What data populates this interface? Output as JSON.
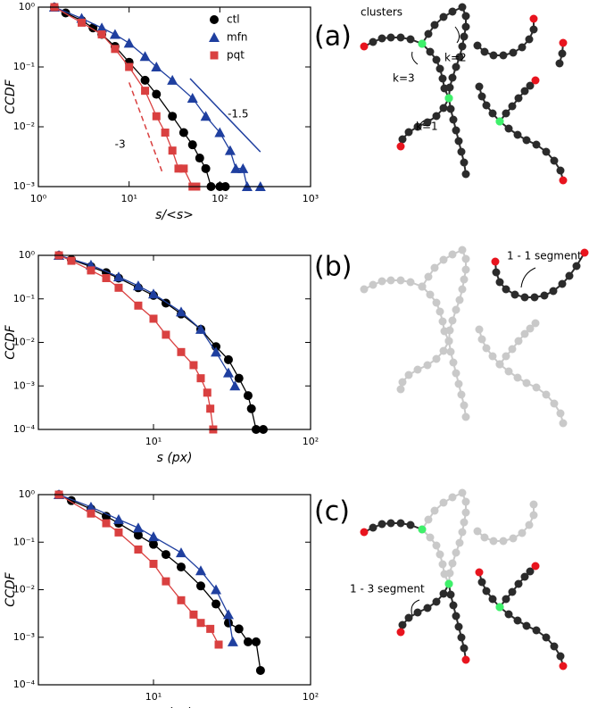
{
  "chart_data": [
    {
      "type": "line",
      "xlabel": "s/<s>",
      "ylabel": "CCDF",
      "xscale": "log",
      "yscale": "log",
      "xlim": [
        1,
        1000
      ],
      "ylim": [
        0.001,
        1
      ],
      "xticks": [
        {
          "value": 1,
          "label": "10⁰"
        },
        {
          "value": 10,
          "label": "10¹"
        },
        {
          "value": 100,
          "label": "10²"
        },
        {
          "value": 1000,
          "label": "10³"
        }
      ],
      "yticks": [
        {
          "value": 0.001,
          "label": "10⁻³"
        },
        {
          "value": 0.01,
          "label": "10⁻²"
        },
        {
          "value": 0.1,
          "label": "10⁻¹"
        },
        {
          "value": 1,
          "label": "10⁰"
        }
      ],
      "legend": "upper right",
      "series": [
        {
          "name": "ctl",
          "color": "#000000",
          "marker": "circle",
          "x": [
            1.5,
            2,
            3,
            4,
            5,
            7,
            10,
            15,
            20,
            30,
            40,
            50,
            60,
            70,
            80,
            100,
            115
          ],
          "values": [
            1,
            0.8,
            0.6,
            0.45,
            0.35,
            0.22,
            0.12,
            0.06,
            0.035,
            0.015,
            0.008,
            0.005,
            0.003,
            0.002,
            0.001,
            0.001,
            0.001
          ]
        },
        {
          "name": "mfn",
          "color": "#1f3f9f",
          "marker": "triangle",
          "x": [
            1.5,
            3,
            5,
            7,
            10,
            15,
            20,
            30,
            50,
            70,
            100,
            130,
            150,
            180,
            200,
            280
          ],
          "values": [
            1,
            0.65,
            0.45,
            0.35,
            0.25,
            0.15,
            0.1,
            0.06,
            0.03,
            0.015,
            0.008,
            0.004,
            0.002,
            0.002,
            0.001,
            0.001
          ]
        },
        {
          "name": "pqt",
          "color": "#d94040",
          "marker": "square",
          "x": [
            1.5,
            3,
            5,
            7,
            10,
            15,
            20,
            25,
            30,
            35,
            40,
            50,
            55
          ],
          "values": [
            1,
            0.55,
            0.35,
            0.2,
            0.1,
            0.04,
            0.015,
            0.008,
            0.004,
            0.002,
            0.002,
            0.001,
            0.001
          ]
        }
      ],
      "reference_lines": [
        {
          "label": "-1.5",
          "color": "#1f3f9f",
          "style": "solid",
          "x": [
            47,
            280
          ],
          "values": [
            0.064,
            0.0038
          ]
        },
        {
          "label": "-3",
          "color": "#d94040",
          "style": "dashed",
          "x": [
            10,
            23
          ],
          "values": [
            0.055,
            0.0018
          ]
        }
      ]
    },
    {
      "type": "line",
      "xlabel": "s (px)",
      "ylabel": "CCDF",
      "xscale": "log",
      "yscale": "log",
      "xlim": [
        1.85,
        100
      ],
      "ylim": [
        0.0001,
        1
      ],
      "xticks": [
        {
          "value": 10,
          "label": "10¹"
        },
        {
          "value": 100,
          "label": "10²"
        }
      ],
      "yticks": [
        {
          "value": 0.0001,
          "label": "10⁻⁴"
        },
        {
          "value": 0.001,
          "label": "10⁻³"
        },
        {
          "value": 0.01,
          "label": "10⁻²"
        },
        {
          "value": 0.1,
          "label": "10⁻¹"
        },
        {
          "value": 1,
          "label": "10⁰"
        }
      ],
      "series": [
        {
          "color": "#000000",
          "marker": "circle",
          "x": [
            2.5,
            3,
            4,
            5,
            6,
            8,
            10,
            12,
            15,
            20,
            25,
            30,
            35,
            40,
            42,
            45,
            50
          ],
          "values": [
            1,
            0.8,
            0.55,
            0.4,
            0.3,
            0.18,
            0.12,
            0.08,
            0.045,
            0.02,
            0.008,
            0.004,
            0.0015,
            0.0006,
            0.0003,
            0.0001,
            0.0001
          ]
        },
        {
          "color": "#1f3f9f",
          "marker": "triangle",
          "x": [
            2.5,
            4,
            6,
            8,
            10,
            15,
            20,
            25,
            30,
            33
          ],
          "values": [
            1,
            0.6,
            0.32,
            0.2,
            0.13,
            0.05,
            0.02,
            0.006,
            0.002,
            0.001
          ]
        },
        {
          "color": "#d94040",
          "marker": "square",
          "x": [
            2.5,
            3,
            4,
            5,
            6,
            8,
            10,
            12,
            15,
            18,
            20,
            22,
            23,
            24
          ],
          "values": [
            1,
            0.75,
            0.45,
            0.3,
            0.18,
            0.07,
            0.035,
            0.015,
            0.006,
            0.003,
            0.0015,
            0.0007,
            0.0003,
            0.0001
          ]
        }
      ]
    },
    {
      "type": "line",
      "xlabel": "s (px)",
      "ylabel": "CCDF",
      "xscale": "log",
      "yscale": "log",
      "xlim": [
        1.85,
        100
      ],
      "ylim": [
        0.0001,
        1
      ],
      "xticks": [
        {
          "value": 10,
          "label": "10¹"
        },
        {
          "value": 100,
          "label": "10²"
        }
      ],
      "yticks": [
        {
          "value": 0.0001,
          "label": "10⁻⁴"
        },
        {
          "value": 0.001,
          "label": "10⁻³"
        },
        {
          "value": 0.01,
          "label": "10⁻²"
        },
        {
          "value": 0.1,
          "label": "10⁻¹"
        },
        {
          "value": 1,
          "label": "10⁰"
        }
      ],
      "series": [
        {
          "color": "#000000",
          "marker": "circle",
          "x": [
            2.5,
            3,
            4,
            5,
            6,
            8,
            10,
            12,
            15,
            20,
            25,
            30,
            35,
            40,
            45,
            48
          ],
          "values": [
            1,
            0.75,
            0.5,
            0.35,
            0.25,
            0.14,
            0.09,
            0.055,
            0.03,
            0.012,
            0.005,
            0.002,
            0.0015,
            0.0008,
            0.0008,
            0.0002
          ]
        },
        {
          "color": "#1f3f9f",
          "marker": "triangle",
          "x": [
            2.5,
            4,
            6,
            8,
            10,
            15,
            20,
            25,
            30,
            32
          ],
          "values": [
            1,
            0.55,
            0.3,
            0.2,
            0.13,
            0.06,
            0.025,
            0.01,
            0.003,
            0.0008
          ]
        },
        {
          "color": "#d94040",
          "marker": "square",
          "x": [
            2.5,
            4,
            5,
            6,
            8,
            10,
            12,
            15,
            18,
            20,
            23,
            26
          ],
          "values": [
            1,
            0.4,
            0.25,
            0.16,
            0.07,
            0.035,
            0.015,
            0.006,
            0.003,
            0.002,
            0.0015,
            0.0007
          ]
        }
      ]
    }
  ],
  "diagrams": [
    {
      "label": "(a)",
      "annotations": [
        "clusters",
        "k=3",
        "k=2",
        "k=1"
      ]
    },
    {
      "label": "(b)",
      "annotations": [
        "1 - 1 segment"
      ]
    },
    {
      "label": "(c)",
      "annotations": [
        "1 - 3 segment"
      ]
    }
  ]
}
